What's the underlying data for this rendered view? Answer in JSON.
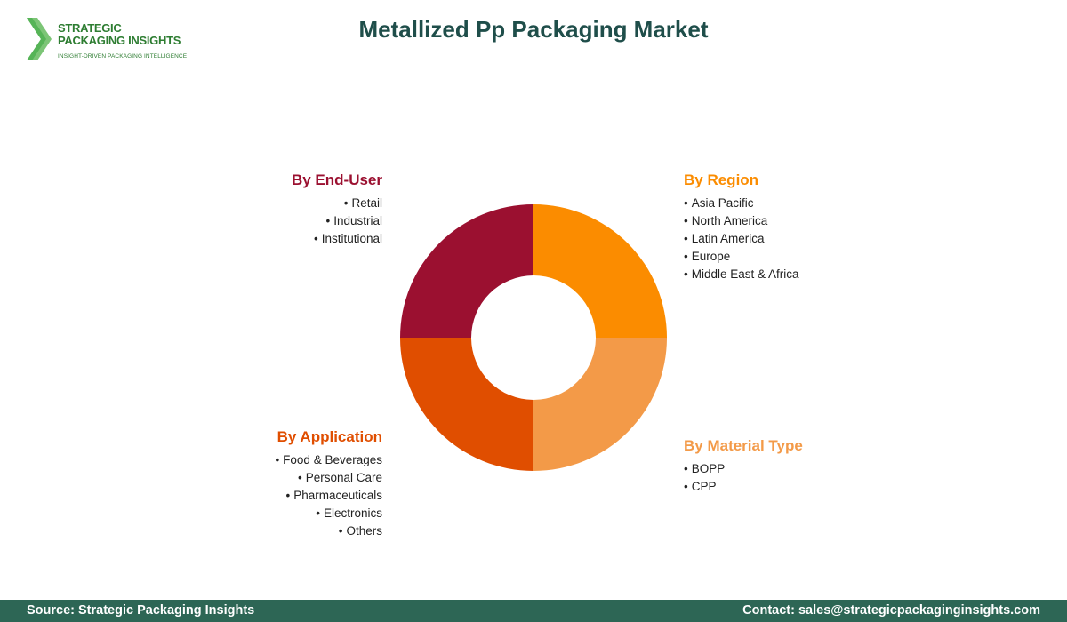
{
  "logo": {
    "line1": "STRATEGIC",
    "line2": "PACKAGING INSIGHTS",
    "tagline": "INSIGHT-DRIVEN PACKAGING INTELLIGENCE"
  },
  "title": "Metallized Pp Packaging Market",
  "segments": {
    "end_user": {
      "title": "By End-User",
      "color": "#9b1030",
      "items": [
        "Retail",
        "Industrial",
        "Institutional"
      ]
    },
    "region": {
      "title": "By Region",
      "color": "#fb8c00",
      "items": [
        "Asia Pacific",
        "North America",
        "Latin America",
        "Europe",
        "Middle East & Africa"
      ]
    },
    "application": {
      "title": "By Application",
      "color": "#e04e00",
      "items": [
        "Food & Beverages",
        "Personal Care",
        "Pharmaceuticals",
        "Electronics",
        "Others"
      ]
    },
    "material_type": {
      "title": "By Material Type",
      "color": "#f39a48",
      "items": [
        "BOPP",
        "CPP"
      ]
    }
  },
  "footer": {
    "source": "Source: Strategic Packaging Insights",
    "contact": "Contact: sales@strategicpackaginginsights.com"
  }
}
